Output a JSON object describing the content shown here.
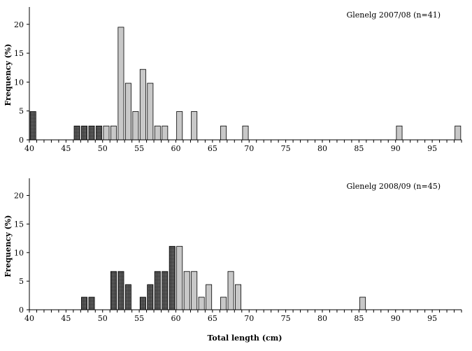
{
  "chart_data": [
    {
      "type": "bar",
      "title": "Glenelg 2007/08 (n=41)",
      "xlabel": "",
      "ylabel": "Frequency (%)",
      "xlim": [
        40,
        99
      ],
      "ylim": [
        0,
        23
      ],
      "x_ticks": [
        "40",
        "45",
        "50",
        "55",
        "60",
        "65",
        "70",
        "75",
        "80",
        "85",
        "90",
        "95"
      ],
      "y_ticks": [
        "0",
        "5",
        "10",
        "15",
        "20"
      ],
      "series": [
        {
          "style": "dark",
          "x": [
            40,
            46,
            47,
            48,
            49
          ],
          "values": [
            4.9,
            2.4,
            2.4,
            2.4,
            2.4
          ]
        },
        {
          "style": "light",
          "x": [
            50,
            51,
            52,
            53,
            54,
            55,
            56,
            57,
            58,
            60,
            62,
            66,
            69,
            90,
            98
          ],
          "values": [
            2.4,
            2.4,
            19.5,
            9.8,
            4.9,
            12.2,
            9.8,
            2.4,
            2.4,
            4.9,
            4.9,
            2.4,
            2.4,
            2.4,
            2.4
          ]
        }
      ]
    },
    {
      "type": "bar",
      "title": "Glenelg 2008/09 (n=45)",
      "xlabel": "Total length (cm)",
      "ylabel": "Frequency (%)",
      "xlim": [
        40,
        99
      ],
      "ylim": [
        0,
        23
      ],
      "x_ticks": [
        "40",
        "45",
        "50",
        "55",
        "60",
        "65",
        "70",
        "75",
        "80",
        "85",
        "90",
        "95"
      ],
      "y_ticks": [
        "0",
        "5",
        "10",
        "15",
        "20"
      ],
      "series": [
        {
          "style": "dark",
          "x": [
            47,
            48,
            51,
            52,
            53,
            55,
            56,
            57,
            58,
            59
          ],
          "values": [
            2.2,
            2.2,
            6.7,
            6.7,
            4.4,
            2.2,
            4.4,
            6.7,
            6.7,
            11.1
          ]
        },
        {
          "style": "light",
          "x": [
            60,
            61,
            62,
            63,
            64,
            66,
            67,
            68,
            85
          ],
          "values": [
            11.1,
            6.7,
            6.7,
            2.2,
            4.4,
            2.2,
            6.7,
            4.4,
            2.2
          ]
        }
      ]
    }
  ]
}
